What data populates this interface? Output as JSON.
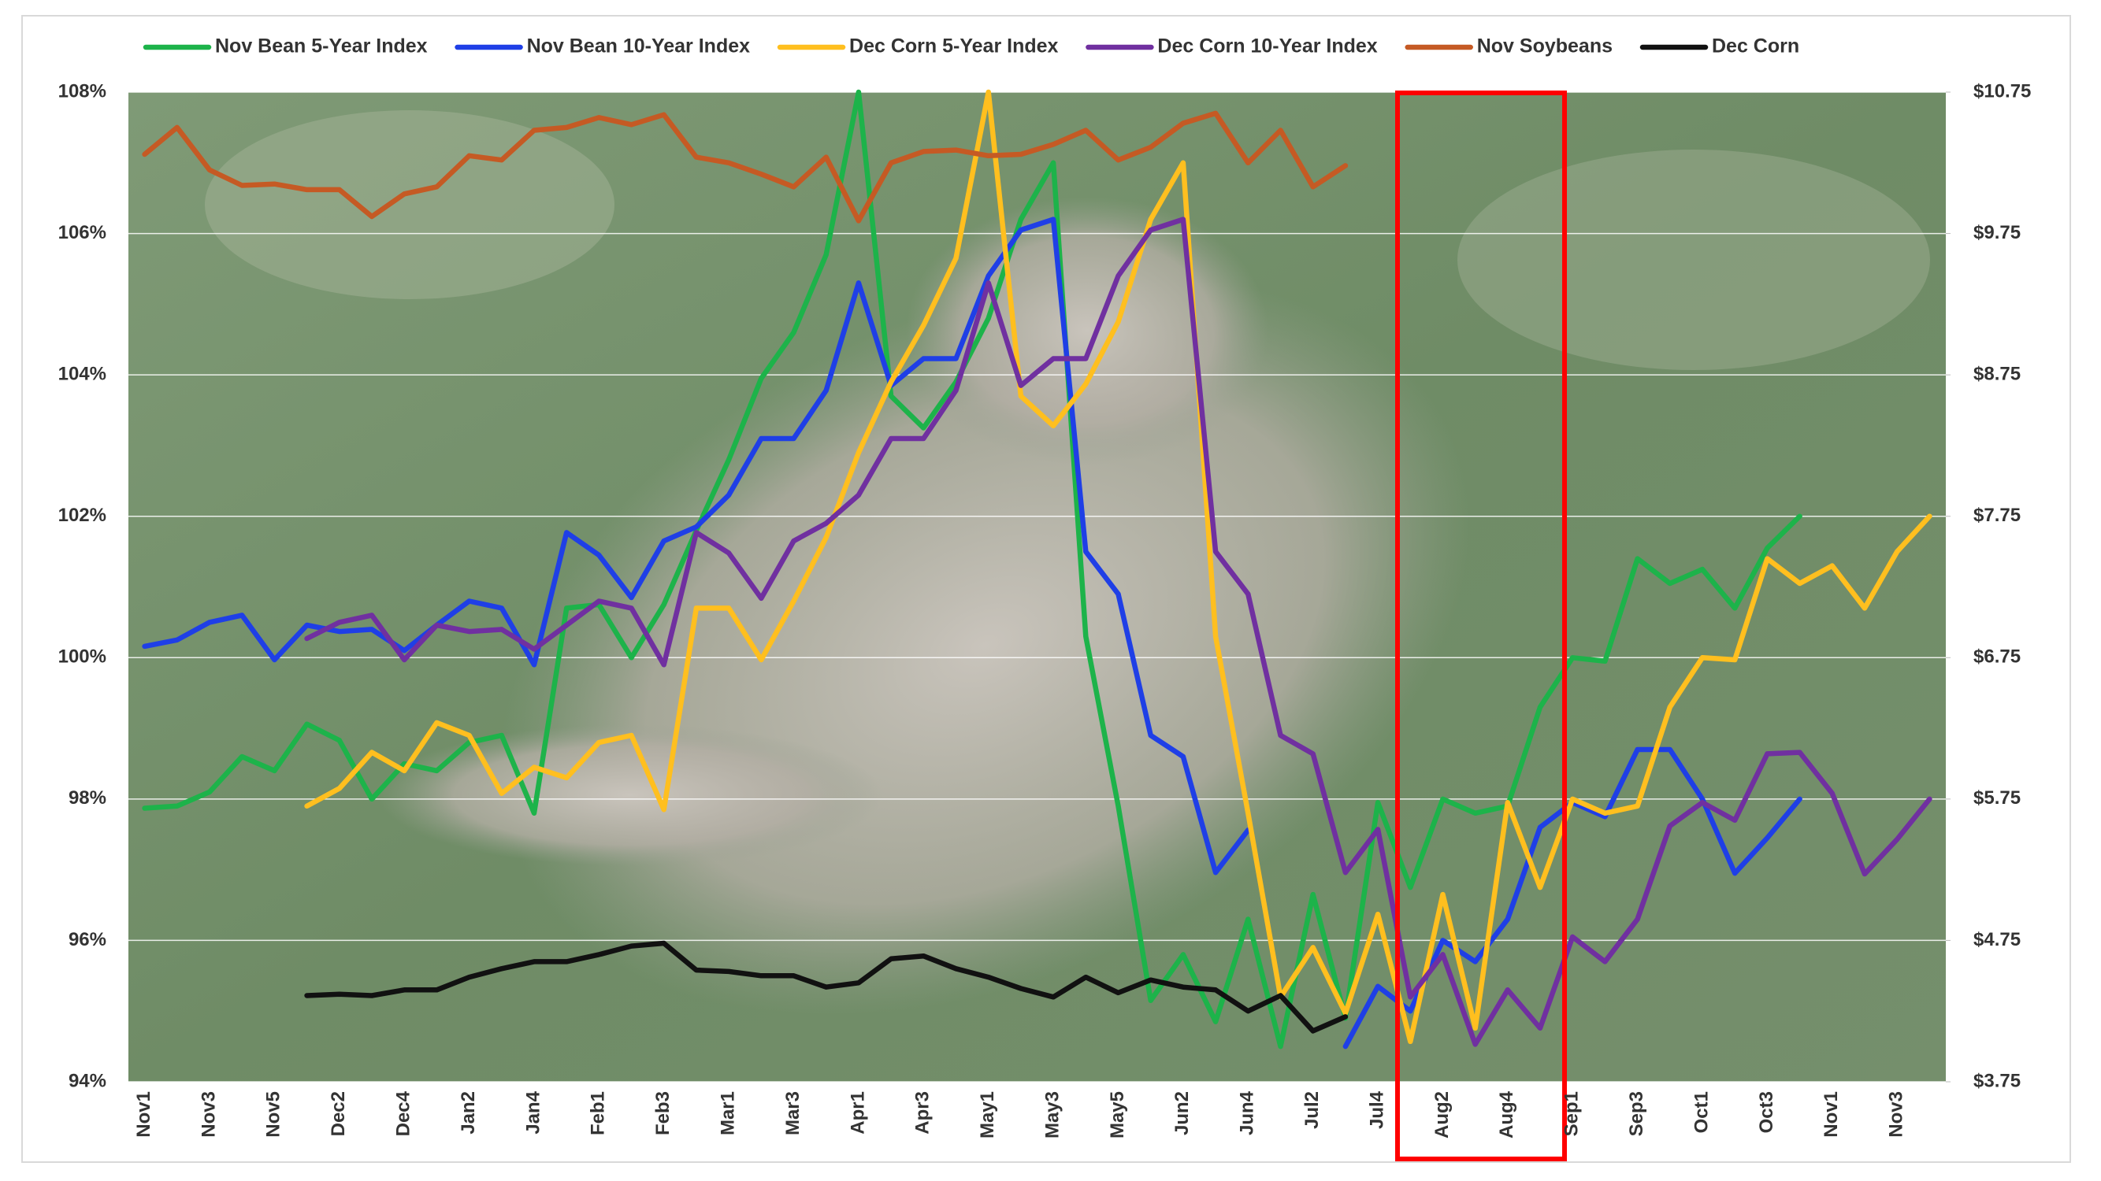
{
  "chart_data": {
    "type": "line",
    "categories": [
      "Nov1",
      null,
      "Nov3",
      null,
      "Nov5",
      null,
      "Dec2",
      null,
      "Dec4",
      null,
      "Jan2",
      null,
      "Jan4",
      null,
      "Feb1",
      null,
      "Feb3",
      null,
      "Mar1",
      null,
      "Mar3",
      null,
      "Apr1",
      null,
      "Apr3",
      null,
      "May1",
      null,
      "May3",
      null,
      "May5",
      null,
      "Jun2",
      null,
      "Jun4",
      null,
      "Jul2",
      null,
      "Jul4",
      null,
      "Aug2",
      null,
      "Aug4",
      null,
      "Sep1",
      null,
      "Sep3",
      null,
      "Oct1",
      null,
      "Oct3",
      null,
      "Nov1",
      null,
      "Nov3",
      null
    ],
    "series": [
      {
        "name": "Nov Bean 5-Year Index",
        "color": "#1db34a",
        "values": [
          97.87,
          97.9,
          98.1,
          98.6,
          98.4,
          99.06,
          98.83,
          98.0,
          98.5,
          98.4,
          98.8,
          98.9,
          97.8,
          100.7,
          100.75,
          100.0,
          100.75,
          101.8,
          102.8,
          103.95,
          104.6,
          105.7,
          108.0,
          103.7,
          103.25,
          103.9,
          104.8,
          106.2,
          107.0,
          100.3,
          97.9,
          95.15,
          95.8,
          94.85,
          96.3,
          94.5,
          96.65,
          94.9,
          97.95,
          96.75,
          98.0,
          97.8,
          97.9,
          99.3,
          100.0,
          99.95,
          101.4,
          101.05,
          101.25,
          100.7,
          101.55,
          102.0,
          null,
          null,
          null,
          null
        ]
      },
      {
        "name": "Nov Bean 10-Year Index",
        "color": "#1f3fe6",
        "values": [
          100.16,
          100.25,
          100.5,
          100.6,
          99.97,
          100.46,
          100.37,
          100.4,
          100.1,
          100.46,
          100.8,
          100.7,
          99.9,
          101.77,
          101.45,
          100.85,
          101.65,
          101.85,
          102.3,
          103.1,
          103.1,
          103.78,
          105.3,
          103.85,
          104.23,
          104.23,
          105.4,
          106.05,
          106.2,
          101.5,
          100.9,
          98.9,
          98.6,
          96.96,
          97.56,
          null,
          null,
          94.5,
          95.35,
          95.0,
          96.0,
          95.7,
          96.3,
          97.6,
          97.95,
          97.75,
          98.7,
          98.7,
          98.0,
          96.95,
          97.45,
          98.0,
          null,
          null,
          null,
          null
        ]
      },
      {
        "name": "Dec Corn 5-Year Index",
        "color": "#ffbf1f",
        "values": [
          null,
          null,
          null,
          null,
          null,
          97.9,
          98.15,
          98.66,
          98.4,
          99.08,
          98.9,
          98.08,
          98.45,
          98.3,
          98.8,
          98.9,
          97.85,
          100.7,
          100.7,
          99.97,
          100.8,
          101.7,
          102.9,
          103.9,
          104.7,
          105.65,
          108.0,
          103.7,
          103.28,
          103.87,
          104.75,
          106.2,
          107.0,
          100.3,
          97.8,
          95.2,
          95.9,
          94.97,
          96.37,
          94.57,
          96.65,
          94.76,
          97.95,
          96.75,
          98.0,
          97.8,
          97.9,
          99.3,
          100.0,
          99.97,
          101.4,
          101.05,
          101.3,
          100.7,
          101.5,
          102.0
        ]
      },
      {
        "name": "Dec Corn 10-Year Index",
        "color": "#7030a0",
        "values": [
          null,
          null,
          null,
          null,
          null,
          100.27,
          100.5,
          100.6,
          99.97,
          100.46,
          100.37,
          100.4,
          100.12,
          100.46,
          100.8,
          100.7,
          99.9,
          101.77,
          101.48,
          100.84,
          101.65,
          101.9,
          102.3,
          103.1,
          103.1,
          103.78,
          105.3,
          103.85,
          104.23,
          104.23,
          105.4,
          106.05,
          106.2,
          101.5,
          100.9,
          98.9,
          98.64,
          96.96,
          97.57,
          95.2,
          95.8,
          94.53,
          95.3,
          94.76,
          96.05,
          95.7,
          96.3,
          97.62,
          97.95,
          97.7,
          98.64,
          98.66,
          98.08,
          96.94,
          97.43,
          98.0
        ]
      },
      {
        "name": "Nov Soybeans",
        "color": "#c55a24",
        "axis": "y2",
        "values": [
          10.31,
          10.5,
          10.2,
          10.09,
          10.1,
          10.06,
          10.06,
          9.87,
          10.03,
          10.08,
          10.3,
          10.27,
          10.48,
          10.5,
          10.57,
          10.52,
          10.59,
          10.29,
          10.25,
          10.17,
          10.08,
          10.29,
          9.84,
          10.25,
          10.33,
          10.34,
          10.3,
          10.31,
          10.38,
          10.48,
          10.27,
          10.36,
          10.53,
          10.6,
          10.25,
          10.48,
          10.08,
          10.23,
          null,
          null,
          null,
          null,
          null,
          null,
          null,
          null,
          null,
          null,
          null,
          null,
          null,
          null,
          null,
          null,
          null,
          null
        ]
      },
      {
        "name": "Dec Corn",
        "color": "#111111",
        "axis": "y2",
        "values": [
          null,
          null,
          null,
          null,
          null,
          4.36,
          4.37,
          4.36,
          4.4,
          4.4,
          4.49,
          4.55,
          4.6,
          4.6,
          4.65,
          4.71,
          4.73,
          4.54,
          4.53,
          4.5,
          4.5,
          4.42,
          4.45,
          4.62,
          4.64,
          4.55,
          4.49,
          4.41,
          4.35,
          4.49,
          4.38,
          4.47,
          4.42,
          4.4,
          4.25,
          4.36,
          4.11,
          4.21,
          null,
          null,
          null,
          null,
          null,
          null,
          null,
          null,
          null,
          null,
          null,
          null,
          null,
          null,
          null,
          null,
          null,
          null
        ]
      }
    ],
    "ylim": [
      94,
      108
    ],
    "yticks": [
      {
        "value": 94,
        "label": "94%"
      },
      {
        "value": 96,
        "label": "96%"
      },
      {
        "value": 98,
        "label": "98%"
      },
      {
        "value": 100,
        "label": "100%"
      },
      {
        "value": 102,
        "label": "102%"
      },
      {
        "value": 104,
        "label": "104%"
      },
      {
        "value": 106,
        "label": "106%"
      },
      {
        "value": 108,
        "label": "108%"
      }
    ],
    "y2lim": [
      3.75,
      10.75
    ],
    "y2ticks": [
      {
        "value": 3.75,
        "label": "$3.75"
      },
      {
        "value": 4.75,
        "label": "$4.75"
      },
      {
        "value": 5.75,
        "label": "$5.75"
      },
      {
        "value": 6.75,
        "label": "$6.75"
      },
      {
        "value": 7.75,
        "label": "$7.75"
      },
      {
        "value": 8.75,
        "label": "$8.75"
      },
      {
        "value": 9.75,
        "label": "$9.75"
      },
      {
        "value": 10.75,
        "label": "$10.75"
      }
    ],
    "grid": true,
    "legend": "top"
  }
}
